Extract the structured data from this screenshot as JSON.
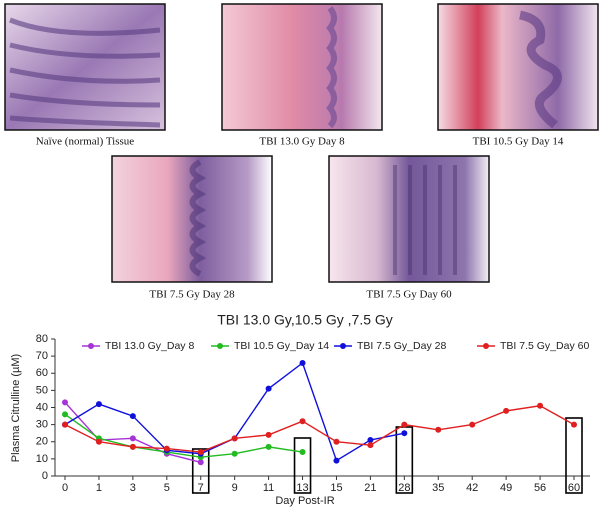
{
  "panels": [
    {
      "caption": "Naïve (normal) Tissue"
    },
    {
      "caption": "TBI 13.0 Gy Day 8"
    },
    {
      "caption": "TBI 10.5 Gy Day 14"
    },
    {
      "caption": "TBI 7.5 Gy Day 28"
    },
    {
      "caption": "TBI 7.5 Gy Day 60"
    }
  ],
  "chart_data": {
    "type": "line",
    "title": "TBI 13.0 Gy,10.5 Gy ,7.5 Gy",
    "x_label": "Day Post-IR",
    "y_label": "Plasma Citrulline (µM)",
    "categories": [
      "0",
      "1",
      "3",
      "5",
      "7",
      "9",
      "11",
      "13",
      "15",
      "21",
      "28",
      "35",
      "42",
      "49",
      "56",
      "60"
    ],
    "series": [
      {
        "name": "TBI 13.0 Gy_Day 8",
        "color": "#a633d6",
        "values": [
          43,
          21,
          22,
          13,
          8,
          null,
          null,
          null,
          null,
          null,
          null,
          null,
          null,
          null,
          null,
          null
        ]
      },
      {
        "name": "TBI 10.5 Gy_Day 14",
        "color": "#22bb22",
        "values": [
          36,
          22,
          17,
          14,
          11,
          13,
          17,
          14,
          null,
          null,
          null,
          null,
          null,
          null,
          null,
          null
        ]
      },
      {
        "name": "TBI 7.5 Gy_Day 28",
        "color": "#1010dd",
        "values": [
          30,
          42,
          35,
          15,
          13,
          22,
          51,
          66,
          9,
          21,
          25,
          null,
          null,
          null,
          null,
          null
        ]
      },
      {
        "name": "TBI 7.5 Gy_Day 60",
        "color": "#e02020",
        "values": [
          30,
          20,
          17,
          16,
          14,
          22,
          24,
          32,
          20,
          18,
          30,
          27,
          30,
          38,
          41,
          30
        ]
      }
    ],
    "ylim": [
      0,
      80
    ],
    "yticks": [
      0,
      10,
      20,
      30,
      40,
      50,
      60,
      70,
      80
    ],
    "legend": "top"
  }
}
